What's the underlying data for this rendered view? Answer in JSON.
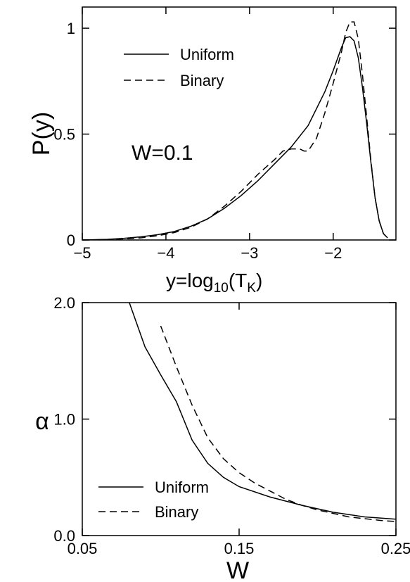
{
  "chart_data": [
    {
      "type": "line",
      "ylabel": "P(y)",
      "xlabel_parts": [
        "y=log",
        "10",
        "(T",
        "K",
        ")"
      ],
      "annotation": "W=0.1",
      "xlim": [
        -5,
        -1.25
      ],
      "ylim": [
        0,
        1.1
      ],
      "xticks": [
        -5,
        -4,
        -3,
        -2
      ],
      "xtick_labels": [
        "−5",
        "−4",
        "−3",
        "−2"
      ],
      "yticks": [
        0,
        0.5,
        1
      ],
      "ytick_labels": [
        "0",
        "0.5",
        "1"
      ],
      "legend_position": "upper-left",
      "series": [
        {
          "name": "Uniform",
          "style": "solid",
          "x": [
            -5.0,
            -4.7,
            -4.5,
            -4.3,
            -4.1,
            -3.9,
            -3.7,
            -3.5,
            -3.3,
            -3.1,
            -2.9,
            -2.7,
            -2.5,
            -2.3,
            -2.1,
            -2.0,
            -1.9,
            -1.85,
            -1.8,
            -1.75,
            -1.7,
            -1.65,
            -1.6,
            -1.55,
            -1.5,
            -1.45,
            -1.4,
            -1.35
          ],
          "y": [
            0.0,
            0.003,
            0.008,
            0.015,
            0.025,
            0.04,
            0.065,
            0.1,
            0.15,
            0.21,
            0.28,
            0.36,
            0.44,
            0.54,
            0.7,
            0.8,
            0.91,
            0.955,
            0.96,
            0.94,
            0.86,
            0.72,
            0.55,
            0.37,
            0.2,
            0.09,
            0.03,
            0.01
          ]
        },
        {
          "name": "Binary",
          "style": "dashed",
          "x": [
            -5.0,
            -4.7,
            -4.5,
            -4.3,
            -4.1,
            -3.9,
            -3.7,
            -3.5,
            -3.3,
            -3.1,
            -2.9,
            -2.7,
            -2.6,
            -2.5,
            -2.45,
            -2.4,
            -2.35,
            -2.3,
            -2.2,
            -2.1,
            -2.0,
            -1.9,
            -1.85,
            -1.8,
            -1.75,
            -1.7,
            -1.65,
            -1.6,
            -1.55,
            -1.5,
            -1.45,
            -1.4,
            -1.35
          ],
          "y": [
            0.0,
            0.002,
            0.005,
            0.01,
            0.02,
            0.035,
            0.06,
            0.1,
            0.16,
            0.23,
            0.31,
            0.38,
            0.42,
            0.43,
            0.43,
            0.43,
            0.42,
            0.42,
            0.48,
            0.6,
            0.74,
            0.89,
            0.98,
            1.03,
            1.03,
            0.95,
            0.78,
            0.58,
            0.38,
            0.2,
            0.09,
            0.03,
            0.01
          ]
        }
      ]
    },
    {
      "type": "line",
      "ylabel": "α",
      "xlabel": "W",
      "xlim": [
        0.05,
        0.25
      ],
      "ylim": [
        0,
        2.0
      ],
      "xticks": [
        0.05,
        0.15,
        0.25
      ],
      "xtick_labels": [
        "0.05",
        "0.15",
        "0.25"
      ],
      "yticks": [
        0,
        1,
        2
      ],
      "ytick_labels": [
        "0.0",
        "1.0",
        "2.0"
      ],
      "legend_position": "lower-left",
      "series": [
        {
          "name": "Uniform",
          "style": "solid",
          "x": [
            0.08,
            0.09,
            0.1,
            0.11,
            0.12,
            0.13,
            0.14,
            0.15,
            0.17,
            0.19,
            0.21,
            0.23,
            0.25
          ],
          "y": [
            2.05,
            1.62,
            1.38,
            1.15,
            0.82,
            0.62,
            0.5,
            0.42,
            0.33,
            0.26,
            0.2,
            0.16,
            0.14
          ]
        },
        {
          "name": "Binary",
          "style": "dashed",
          "x": [
            0.1,
            0.11,
            0.12,
            0.13,
            0.14,
            0.15,
            0.16,
            0.17,
            0.18,
            0.19,
            0.2,
            0.22,
            0.24,
            0.25
          ],
          "y": [
            1.8,
            1.45,
            1.12,
            0.84,
            0.66,
            0.54,
            0.45,
            0.38,
            0.31,
            0.26,
            0.22,
            0.16,
            0.13,
            0.12
          ]
        }
      ]
    }
  ]
}
